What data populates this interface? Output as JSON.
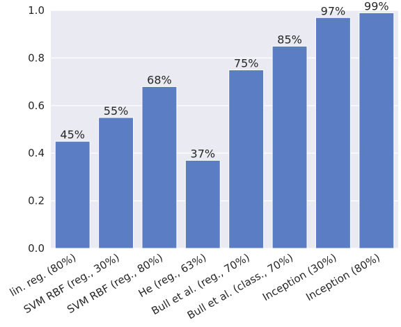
{
  "chart_data": {
    "type": "bar",
    "categories": [
      "lin. reg. (80%)",
      "SVM RBF (reg., 30%)",
      "SVM RBF (reg., 80%)",
      "He (reg., 63%)",
      "Bull et al. (reg., 70%)",
      "Bull et al. (class., 70%)",
      "Inception (30%)",
      "Inception (80%)"
    ],
    "values": [
      0.45,
      0.55,
      0.68,
      0.37,
      0.75,
      0.85,
      0.97,
      0.99
    ],
    "data_labels": [
      "45%",
      "55%",
      "68%",
      "37%",
      "75%",
      "85%",
      "97%",
      "99%"
    ],
    "yticks": [
      "0.0",
      "0.2",
      "0.4",
      "0.6",
      "0.8",
      "1.0"
    ],
    "ylim": [
      0,
      1.0
    ],
    "grid": true,
    "colors": {
      "bar": "#5a7dc3",
      "plot_background": "#eaeaf2",
      "grid": "#ffffff",
      "text": "#262626"
    }
  }
}
